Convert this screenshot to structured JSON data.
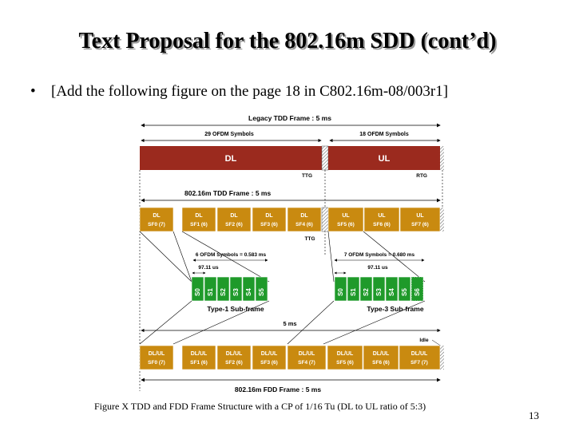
{
  "slide": {
    "title": "Text Proposal for the 802.16m SDD (cont’d)",
    "bullet": "[Add the following figure on the page 18 in C802.16m-08/003r1]",
    "caption": "Figure X TDD and FDD Frame Structure with a CP of 1/16 Tu (DL to UL ratio of 5:3)",
    "page_number": "13"
  },
  "figure": {
    "legacy_title": "Legacy TDD Frame : 5 ms",
    "dl_symbols": "29 OFDM Symbols",
    "ul_symbols": "18 OFDM Symbols",
    "dl_label": "DL",
    "ul_label": "UL",
    "ttg": "TTG",
    "rtg": "RTG",
    "tdd_title": "802.16m TDD Frame : 5 ms",
    "tdd_subframes": [
      {
        "l1": "DL",
        "l2": "SF0 (7)"
      },
      {
        "l1": "DL",
        "l2": "SF1 (6)"
      },
      {
        "l1": "DL",
        "l2": "SF2 (6)"
      },
      {
        "l1": "DL",
        "l2": "SF3 (6)"
      },
      {
        "l1": "DL",
        "l2": "SF4 (6)"
      },
      {
        "l1": "UL",
        "l2": "SF5 (6)"
      },
      {
        "l1": "UL",
        "l2": "SF6 (6)"
      },
      {
        "l1": "UL",
        "l2": "SF7 (6)"
      }
    ],
    "ttg2": "TTG",
    "six_sym": "6 OFDM Symbols = 0.583 ms",
    "seven_sym": "7 OFDM Symbols = 0.680 ms",
    "us_left": "97.11 us",
    "us_right": "97.11 us",
    "type1_symbols": [
      "S0",
      "S1",
      "S2",
      "S3",
      "S4",
      "S5"
    ],
    "type3_symbols": [
      "S0",
      "S1",
      "S2",
      "S3",
      "S4",
      "S5",
      "S6"
    ],
    "type1_label": "Type-1 Sub-frame",
    "type3_label": "Type-3 Sub-frame",
    "five_ms": "5 ms",
    "idle": "Idle",
    "fdd_subframes": [
      {
        "l1": "DL/UL",
        "l2": "SF0 (7)"
      },
      {
        "l1": "DL/UL",
        "l2": "SF1 (6)"
      },
      {
        "l1": "DL/UL",
        "l2": "SF2 (6)"
      },
      {
        "l1": "DL/UL",
        "l2": "SF3 (6)"
      },
      {
        "l1": "DL/UL",
        "l2": "SF4 (7)"
      },
      {
        "l1": "DL/UL",
        "l2": "SF5 (6)"
      },
      {
        "l1": "DL/UL",
        "l2": "SF6 (6)"
      },
      {
        "l1": "DL/UL",
        "l2": "SF7 (7)"
      }
    ],
    "fdd_title": "802.16m FDD Frame : 5 ms",
    "colors": {
      "legacy_red": "#9b2a1e",
      "subframe_gold": "#c98a10",
      "symbol_green": "#1f9a2a"
    }
  }
}
